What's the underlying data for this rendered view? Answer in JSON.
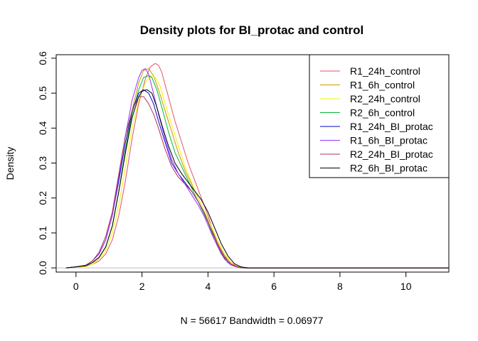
{
  "chart_data": {
    "type": "line",
    "title": "Density plots for BI_protac and control",
    "xlabel": "N = 56617   Bandwidth = 0.06977",
    "ylabel": "Density",
    "xlim": [
      -0.6,
      11.3
    ],
    "ylim": [
      -0.012,
      0.61
    ],
    "x_ticks": [
      0,
      2,
      4,
      6,
      8,
      10
    ],
    "x_tick_labels": [
      "0",
      "2",
      "4",
      "6",
      "8",
      "10"
    ],
    "y_ticks": [
      0.0,
      0.1,
      0.2,
      0.3,
      0.4,
      0.5,
      0.6
    ],
    "y_tick_labels": [
      "0.0",
      "0.1",
      "0.2",
      "0.3",
      "0.4",
      "0.5",
      "0.6"
    ],
    "grid": false,
    "zero_line": true,
    "legend_position": "top-right",
    "series": [
      {
        "name": "R1_24h_control",
        "color": "#DF536B",
        "x": [
          -0.3,
          0.0,
          0.3,
          0.5,
          0.7,
          0.9,
          1.1,
          1.3,
          1.5,
          1.7,
          1.9,
          2.1,
          2.25,
          2.4,
          2.5,
          2.6,
          2.8,
          3.0,
          3.2,
          3.4,
          3.6,
          3.8,
          4.0,
          4.2,
          4.4,
          4.6,
          4.8,
          5.0,
          5.3,
          11.3
        ],
        "y": [
          0.0,
          0.003,
          0.004,
          0.01,
          0.02,
          0.04,
          0.08,
          0.15,
          0.25,
          0.37,
          0.47,
          0.54,
          0.575,
          0.585,
          0.58,
          0.56,
          0.49,
          0.42,
          0.36,
          0.3,
          0.25,
          0.2,
          0.15,
          0.09,
          0.05,
          0.02,
          0.008,
          0.002,
          0.0,
          0.0
        ]
      },
      {
        "name": "R1_6h_control",
        "color": "#CD9600",
        "x": [
          -0.3,
          0.0,
          0.3,
          0.5,
          0.7,
          0.9,
          1.1,
          1.3,
          1.5,
          1.7,
          1.9,
          2.05,
          2.2,
          2.35,
          2.5,
          2.7,
          2.9,
          3.1,
          3.3,
          3.5,
          3.7,
          3.9,
          4.1,
          4.3,
          4.5,
          4.7,
          4.9,
          5.1,
          11.3
        ],
        "y": [
          0.0,
          0.003,
          0.006,
          0.015,
          0.03,
          0.06,
          0.12,
          0.22,
          0.34,
          0.45,
          0.53,
          0.565,
          0.57,
          0.55,
          0.51,
          0.45,
          0.39,
          0.33,
          0.28,
          0.24,
          0.2,
          0.16,
          0.12,
          0.07,
          0.035,
          0.015,
          0.005,
          0.0,
          0.0
        ]
      },
      {
        "name": "R2_24h_control",
        "color": "#F5F000",
        "x": [
          -0.3,
          0.0,
          0.3,
          0.5,
          0.7,
          0.9,
          1.1,
          1.3,
          1.5,
          1.7,
          1.9,
          2.1,
          2.25,
          2.4,
          2.55,
          2.7,
          2.9,
          3.1,
          3.3,
          3.5,
          3.7,
          3.9,
          4.1,
          4.3,
          4.5,
          4.7,
          4.9,
          5.1,
          11.3
        ],
        "y": [
          0.0,
          0.002,
          0.004,
          0.01,
          0.025,
          0.05,
          0.1,
          0.18,
          0.29,
          0.4,
          0.48,
          0.53,
          0.55,
          0.545,
          0.52,
          0.47,
          0.41,
          0.35,
          0.29,
          0.245,
          0.2,
          0.16,
          0.12,
          0.075,
          0.04,
          0.015,
          0.005,
          0.0,
          0.0
        ]
      },
      {
        "name": "R2_6h_control",
        "color": "#00BA38",
        "x": [
          -0.3,
          0.0,
          0.3,
          0.5,
          0.7,
          0.9,
          1.1,
          1.3,
          1.5,
          1.7,
          1.9,
          2.05,
          2.2,
          2.3,
          2.45,
          2.6,
          2.8,
          3.0,
          3.2,
          3.4,
          3.6,
          3.8,
          4.0,
          4.2,
          4.4,
          4.6,
          4.8,
          5.0,
          11.3
        ],
        "y": [
          0.0,
          0.003,
          0.006,
          0.015,
          0.03,
          0.06,
          0.12,
          0.22,
          0.34,
          0.44,
          0.51,
          0.545,
          0.55,
          0.545,
          0.51,
          0.46,
          0.39,
          0.33,
          0.29,
          0.25,
          0.21,
          0.17,
          0.13,
          0.08,
          0.04,
          0.015,
          0.005,
          0.0,
          0.0
        ]
      },
      {
        "name": "R1_24h_BI_protac",
        "color": "#0000CD",
        "x": [
          -0.3,
          0.0,
          0.3,
          0.5,
          0.7,
          0.9,
          1.1,
          1.3,
          1.5,
          1.7,
          1.9,
          2.05,
          2.2,
          2.35,
          2.5,
          2.7,
          2.9,
          3.1,
          3.3,
          3.5,
          3.7,
          3.9,
          4.1,
          4.3,
          4.5,
          4.7,
          4.9,
          5.1,
          11.3
        ],
        "y": [
          0.0,
          0.003,
          0.008,
          0.02,
          0.04,
          0.08,
          0.15,
          0.25,
          0.36,
          0.45,
          0.5,
          0.51,
          0.5,
          0.47,
          0.42,
          0.36,
          0.3,
          0.27,
          0.245,
          0.22,
          0.19,
          0.155,
          0.11,
          0.065,
          0.03,
          0.01,
          0.003,
          0.0,
          0.0
        ]
      },
      {
        "name": "R1_6h_BI_protac",
        "color": "#9B30FF",
        "x": [
          -0.3,
          0.0,
          0.3,
          0.5,
          0.7,
          0.9,
          1.1,
          1.3,
          1.5,
          1.7,
          1.9,
          2.0,
          2.1,
          2.2,
          2.35,
          2.5,
          2.7,
          2.9,
          3.1,
          3.3,
          3.5,
          3.7,
          3.9,
          4.1,
          4.3,
          4.5,
          4.7,
          4.9,
          5.1,
          11.3
        ],
        "y": [
          0.0,
          0.003,
          0.007,
          0.02,
          0.04,
          0.08,
          0.15,
          0.26,
          0.38,
          0.48,
          0.545,
          0.565,
          0.57,
          0.555,
          0.5,
          0.44,
          0.37,
          0.31,
          0.27,
          0.24,
          0.21,
          0.18,
          0.145,
          0.1,
          0.06,
          0.025,
          0.008,
          0.002,
          0.0,
          0.0
        ]
      },
      {
        "name": "R2_24h_BI_protac",
        "color": "#B03060",
        "x": [
          -0.3,
          0.0,
          0.3,
          0.5,
          0.7,
          0.9,
          1.1,
          1.3,
          1.5,
          1.7,
          1.9,
          2.05,
          2.2,
          2.35,
          2.5,
          2.7,
          2.9,
          3.1,
          3.3,
          3.5,
          3.7,
          3.9,
          4.1,
          4.3,
          4.5,
          4.7,
          4.9,
          5.1,
          11.3
        ],
        "y": [
          0.0,
          0.003,
          0.008,
          0.02,
          0.045,
          0.09,
          0.16,
          0.27,
          0.38,
          0.45,
          0.49,
          0.49,
          0.47,
          0.44,
          0.4,
          0.34,
          0.29,
          0.26,
          0.24,
          0.22,
          0.19,
          0.155,
          0.11,
          0.065,
          0.03,
          0.01,
          0.003,
          0.0,
          0.0
        ]
      },
      {
        "name": "R2_6h_BI_protac",
        "color": "#000000",
        "x": [
          -0.3,
          0.0,
          0.3,
          0.5,
          0.7,
          0.9,
          1.1,
          1.3,
          1.5,
          1.7,
          1.9,
          2.0,
          2.15,
          2.3,
          2.45,
          2.6,
          2.8,
          3.0,
          3.2,
          3.4,
          3.6,
          3.8,
          4.0,
          4.2,
          4.4,
          4.6,
          4.8,
          5.0,
          5.2,
          11.3
        ],
        "y": [
          0.0,
          0.003,
          0.006,
          0.015,
          0.03,
          0.06,
          0.12,
          0.22,
          0.33,
          0.43,
          0.49,
          0.505,
          0.51,
          0.5,
          0.46,
          0.41,
          0.35,
          0.3,
          0.27,
          0.245,
          0.22,
          0.195,
          0.16,
          0.115,
          0.07,
          0.035,
          0.012,
          0.003,
          0.0,
          0.0
        ]
      }
    ]
  }
}
